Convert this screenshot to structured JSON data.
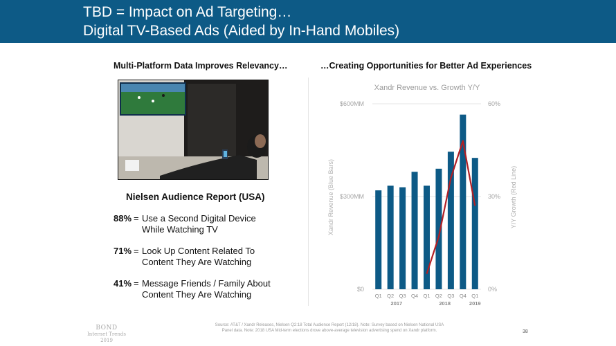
{
  "header": {
    "line1": "TBD = Impact on Ad Targeting…",
    "line2": "Digital TV-Based Ads (Aided by In-Hand Mobiles)"
  },
  "left": {
    "title": "Multi-Platform Data Improves Relevancy…",
    "report_title": "Nielsen Audience Report (USA)",
    "stats": [
      {
        "pct": "88%",
        "eq": "=",
        "line1": "Use a Second Digital Device",
        "line2": "While Watching TV"
      },
      {
        "pct": "71%",
        "eq": "=",
        "line1": "Look Up Content Related To",
        "line2": "Content They Are Watching"
      },
      {
        "pct": "41%",
        "eq": "=",
        "line1": "Message Friends / Family About",
        "line2": "Content They Are Watching"
      }
    ]
  },
  "right": {
    "title": "…Creating Opportunities for Better Ad Experiences"
  },
  "chart_data": {
    "type": "bar",
    "title": "Xandr Revenue vs. Growth Y/Y",
    "categories": [
      "Q1",
      "Q2",
      "Q3",
      "Q4",
      "Q1",
      "Q2",
      "Q3",
      "Q4",
      "Q1"
    ],
    "years": [
      {
        "label": "2017",
        "span": [
          0,
          3
        ]
      },
      {
        "label": "2018",
        "span": [
          4,
          7
        ]
      },
      {
        "label": "2019",
        "span": [
          8,
          8
        ]
      }
    ],
    "series": [
      {
        "name": "Xandr Revenue",
        "axis": "left",
        "color": "#0d5a86",
        "values": [
          320,
          335,
          330,
          380,
          335,
          390,
          445,
          565,
          425
        ]
      },
      {
        "name": "Y/Y Growth",
        "axis": "right",
        "color": "#b21f24",
        "values": [
          null,
          null,
          null,
          null,
          5,
          17,
          36,
          48,
          27
        ]
      }
    ],
    "ylabel": "Xandr Revenue (Blue Bars)",
    "y2label": "Y/Y Growth (Red Line)",
    "ylim": [
      0,
      600
    ],
    "y2lim": [
      0,
      60
    ],
    "yticks": [
      "$0",
      "$300MM",
      "$600MM"
    ],
    "y2ticks": [
      "0%",
      "30%",
      "60%"
    ]
  },
  "footer": {
    "source_line1": "Source: AT&T / Xandr Releases, Nielsen Q2:18 Total Audience Report (12/18). Note: Survey based on Nielsen National USA",
    "source_line2": "Panel data.  Note: 2018 USA Mid-term elections drove above-average television advertising spend on Xandr platform.",
    "page": "38",
    "logo": {
      "name": "BOND",
      "sub1": "Internet Trends",
      "sub2": "2019"
    }
  }
}
